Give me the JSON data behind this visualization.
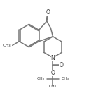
{
  "background": "#ffffff",
  "line_color": "#777777",
  "lw": 1.1,
  "figsize": [
    1.27,
    1.46
  ],
  "dpi": 100,
  "xlim": [
    0,
    1
  ],
  "ylim": [
    0,
    1
  ]
}
